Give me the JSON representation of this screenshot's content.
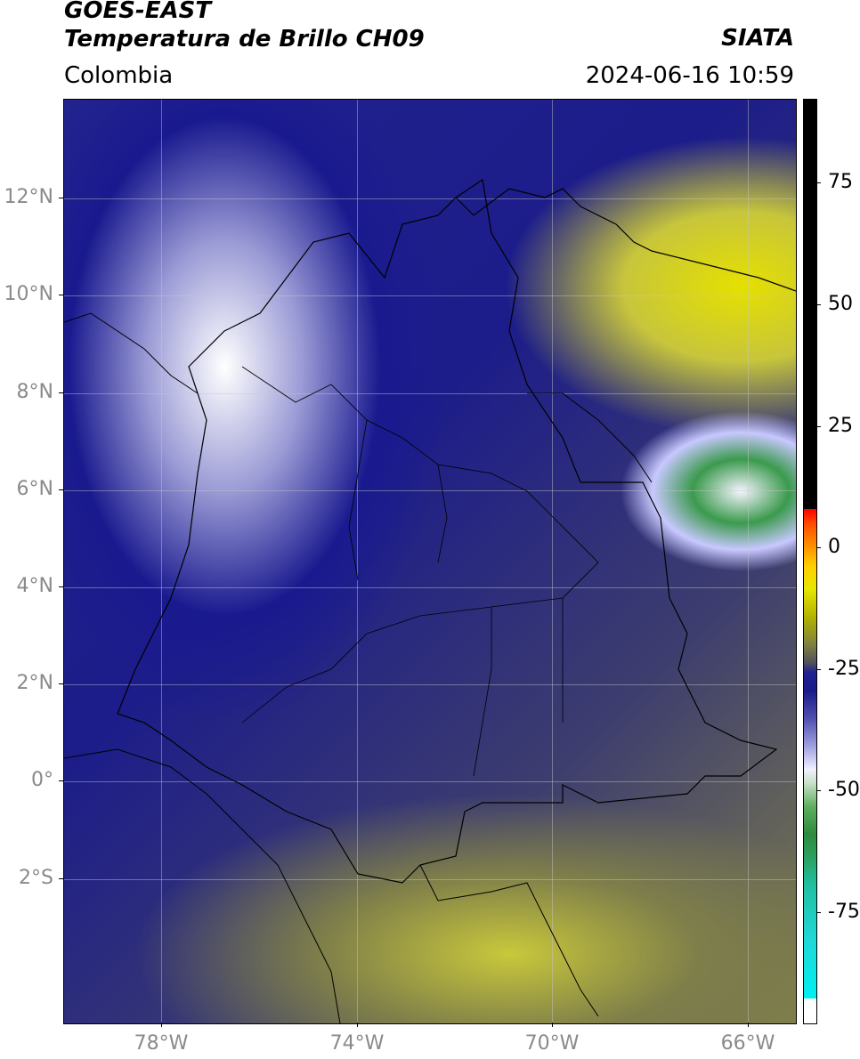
{
  "header": {
    "title_line1": "GOES-EAST",
    "title_line2": "Temperatura de Brillo CH09",
    "subtitle": "Colombia",
    "source": "SIATA",
    "timestamp": "2024-06-16 10:59"
  },
  "map": {
    "lat_ticks": [
      "12°N",
      "10°N",
      "8°N",
      "6°N",
      "4°N",
      "2°N",
      "0°",
      "2°S"
    ],
    "lon_ticks": [
      "78°W",
      "74°W",
      "70°W",
      "66°W"
    ]
  },
  "colorbar": {
    "ticks": [
      "75",
      "50",
      "25",
      "0",
      "-25",
      "-50",
      "-75"
    ],
    "range": [
      -95,
      90
    ],
    "colors": {
      "warm_high": "#000000",
      "red": "#ff0000",
      "yellow": "#e6e600",
      "olive": "#808040",
      "navy": "#1a1a8a",
      "white": "#f0f0ff",
      "green": "#2e8b3e",
      "cyan": "#00f0f0"
    }
  }
}
